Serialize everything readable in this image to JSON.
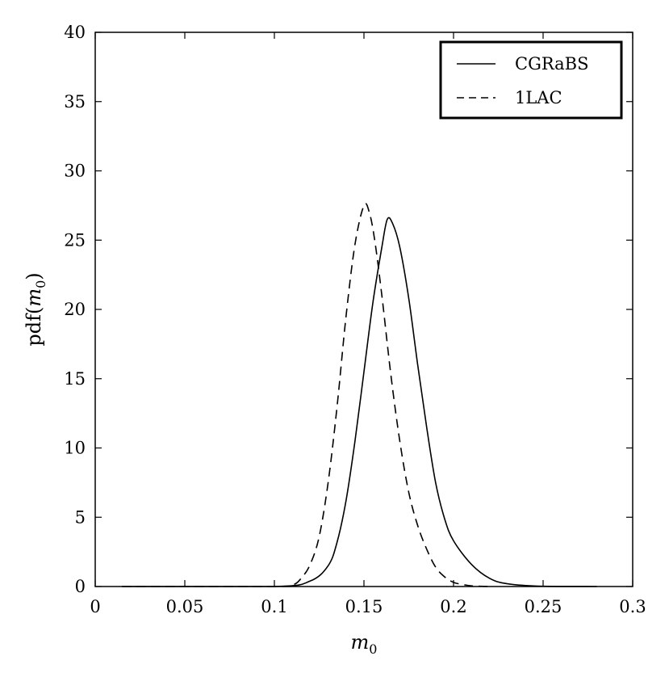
{
  "chart_data": {
    "type": "line",
    "title": "",
    "xlabel": "m",
    "xlabel_sub": "0",
    "ylabel_prefix": "pdf(",
    "ylabel_var": "m",
    "ylabel_sub": "0",
    "ylabel_suffix": ")",
    "xlim": [
      0,
      0.3
    ],
    "ylim": [
      0,
      40
    ],
    "xticks": [
      "0",
      "0.05",
      "0.1",
      "0.15",
      "0.2",
      "0.25",
      "0.3"
    ],
    "yticks": [
      "0",
      "5",
      "10",
      "15",
      "20",
      "25",
      "30",
      "35",
      "40"
    ],
    "grid": false,
    "legend_position": "top-right",
    "series": [
      {
        "name": "CGRaBS",
        "style": "solid",
        "color": "#000000",
        "x": [
          0.015,
          0.1,
          0.12,
          0.13,
          0.135,
          0.14,
          0.145,
          0.15,
          0.155,
          0.16,
          0.163,
          0.166,
          0.17,
          0.175,
          0.18,
          0.185,
          0.19,
          0.195,
          0.2,
          0.21,
          0.22,
          0.23,
          0.25,
          0.28
        ],
        "y": [
          0,
          0,
          0.4,
          1.5,
          3.2,
          6.2,
          10.5,
          15.5,
          20.5,
          24.5,
          26.5,
          26.2,
          24.5,
          20.8,
          16.0,
          11.5,
          7.5,
          4.9,
          3.3,
          1.6,
          0.6,
          0.2,
          0.02,
          0
        ]
      },
      {
        "name": "1LAC",
        "style": "dashed",
        "color": "#000000",
        "x": [
          0.015,
          0.1,
          0.11,
          0.115,
          0.12,
          0.125,
          0.13,
          0.135,
          0.14,
          0.145,
          0.15,
          0.153,
          0.156,
          0.16,
          0.165,
          0.17,
          0.175,
          0.18,
          0.185,
          0.19,
          0.195,
          0.2,
          0.205,
          0.21,
          0.22
        ],
        "y": [
          0,
          0,
          0.1,
          0.6,
          1.6,
          3.6,
          7.5,
          13.0,
          19.5,
          24.7,
          27.5,
          27.0,
          25.0,
          21.0,
          15.3,
          10.5,
          6.8,
          4.4,
          2.7,
          1.4,
          0.7,
          0.3,
          0.15,
          0.05,
          0
        ]
      }
    ]
  }
}
